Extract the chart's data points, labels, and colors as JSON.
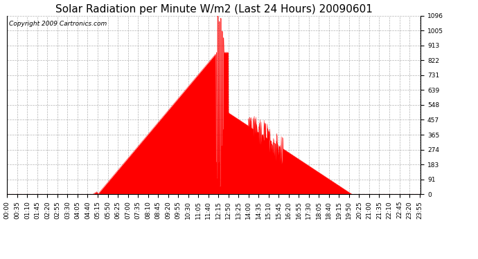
{
  "title": "Solar Radiation per Minute W/m2 (Last 24 Hours) 20090601",
  "copyright_text": "Copyright 2009 Cartronics.com",
  "y_ticks": [
    0.0,
    91.3,
    182.7,
    274.0,
    365.3,
    456.7,
    548.0,
    639.3,
    730.7,
    822.0,
    913.3,
    1004.7,
    1096.0
  ],
  "ymin": 0.0,
  "ymax": 1096.0,
  "fill_color": "#FF0000",
  "line_color": "#FF0000",
  "bg_color": "#FFFFFF",
  "grid_color": "#AAAAAA",
  "dashed_line_color": "#FF0000",
  "title_fontsize": 11,
  "copyright_fontsize": 6.5,
  "tick_fontsize": 6.5,
  "x_tick_step_minutes": 35
}
